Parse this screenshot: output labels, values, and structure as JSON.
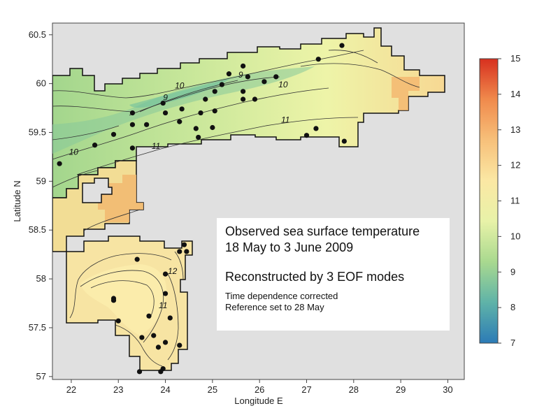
{
  "chart_data": {
    "type": "heatmap",
    "subtype": "sea surface temperature map with contours",
    "xlabel": "Longitude E",
    "ylabel": "Latitude N",
    "xlim": [
      21.6,
      30.35
    ],
    "ylim": [
      56.97,
      60.62
    ],
    "x_ticks": [
      22,
      23,
      24,
      25,
      26,
      27,
      28,
      29,
      30
    ],
    "x_tick_labels": [
      "22",
      "23",
      "24",
      "25",
      "26",
      "27",
      "28",
      "29",
      "30"
    ],
    "y_ticks": [
      57,
      57.5,
      58,
      58.5,
      59,
      59.5,
      60,
      60.5
    ],
    "y_tick_labels": [
      "57",
      "57.5",
      "58",
      "58.5",
      "59",
      "59.5",
      "60",
      "60.5"
    ],
    "colorbar": {
      "range": [
        7,
        15
      ],
      "ticks": [
        "7",
        "8",
        "9",
        "10",
        "11",
        "12",
        "13",
        "14",
        "15"
      ],
      "colormap": "blue-green-yellow-orange-red",
      "stops": [
        "#2c7bb6",
        "#5fb3a8",
        "#a9d98f",
        "#e8f2a8",
        "#fbe8a4",
        "#f7c07a",
        "#f08a4c",
        "#d7301f"
      ]
    },
    "contour_labels": [
      {
        "value": "9",
        "lon": 24.0,
        "lat": 59.83
      },
      {
        "value": "10",
        "lon": 24.3,
        "lat": 59.95
      },
      {
        "value": "10",
        "lon": 26.5,
        "lat": 59.96
      },
      {
        "value": "11",
        "lon": 26.55,
        "lat": 59.6
      },
      {
        "value": "9",
        "lon": 25.6,
        "lat": 60.06
      },
      {
        "value": "10",
        "lon": 22.05,
        "lat": 59.27
      },
      {
        "value": "11",
        "lon": 23.8,
        "lat": 59.33
      },
      {
        "value": "12",
        "lon": 24.15,
        "lat": 58.05
      },
      {
        "value": "11",
        "lon": 23.95,
        "lat": 57.7
      }
    ],
    "stations": [
      [
        21.75,
        59.18
      ],
      [
        22.5,
        59.37
      ],
      [
        22.9,
        59.48
      ],
      [
        23.3,
        59.34
      ],
      [
        23.3,
        59.7
      ],
      [
        23.3,
        59.58
      ],
      [
        23.6,
        59.58
      ],
      [
        23.95,
        59.8
      ],
      [
        24.0,
        59.7
      ],
      [
        24.35,
        59.74
      ],
      [
        24.3,
        59.61
      ],
      [
        24.65,
        59.54
      ],
      [
        24.7,
        59.45
      ],
      [
        24.75,
        59.7
      ],
      [
        24.85,
        59.84
      ],
      [
        25.0,
        59.55
      ],
      [
        25.05,
        59.72
      ],
      [
        25.05,
        59.92
      ],
      [
        25.2,
        59.99
      ],
      [
        25.35,
        60.1
      ],
      [
        25.65,
        60.18
      ],
      [
        25.65,
        59.92
      ],
      [
        25.65,
        59.84
      ],
      [
        25.75,
        60.07
      ],
      [
        25.9,
        59.84
      ],
      [
        26.1,
        60.02
      ],
      [
        26.35,
        60.07
      ],
      [
        27.0,
        59.47
      ],
      [
        27.2,
        59.54
      ],
      [
        27.25,
        60.25
      ],
      [
        27.75,
        60.39
      ],
      [
        27.8,
        59.41
      ],
      [
        23.4,
        58.2
      ],
      [
        22.9,
        57.8
      ],
      [
        22.9,
        57.78
      ],
      [
        23.0,
        57.57
      ],
      [
        23.65,
        57.62
      ],
      [
        23.5,
        57.4
      ],
      [
        23.75,
        57.42
      ],
      [
        23.45,
        57.05
      ],
      [
        23.9,
        57.05
      ],
      [
        23.95,
        57.08
      ],
      [
        23.85,
        57.3
      ],
      [
        24.0,
        57.35
      ],
      [
        24.0,
        58.05
      ],
      [
        24.0,
        57.85
      ],
      [
        24.1,
        57.6
      ],
      [
        24.3,
        58.28
      ],
      [
        24.4,
        58.35
      ],
      [
        24.45,
        58.28
      ],
      [
        24.3,
        57.32
      ]
    ]
  },
  "annotation": {
    "line1": "Observed sea surface temperature",
    "line2": "18 May to 3 June 2009",
    "line3": "Reconstructed by 3 EOF modes",
    "line4": "Time dependence corrected",
    "line5": "Reference set to 28 May"
  }
}
